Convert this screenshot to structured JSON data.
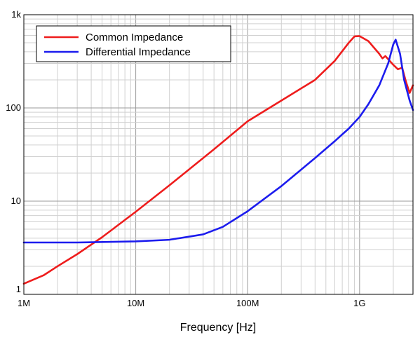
{
  "chart_data": {
    "type": "line",
    "title": "",
    "xlabel": "Frequency [Hz]",
    "ylabel": "",
    "x_scale": "log",
    "y_scale": "log",
    "xlim": [
      1000000,
      3000000000
    ],
    "ylim": [
      1,
      1000
    ],
    "x_ticks": [
      {
        "value": 1000000,
        "label": "1M"
      },
      {
        "value": 10000000,
        "label": "10M"
      },
      {
        "value": 100000000,
        "label": "100M"
      },
      {
        "value": 1000000000,
        "label": "1G"
      }
    ],
    "y_ticks": [
      {
        "value": 1,
        "label": "1"
      },
      {
        "value": 10,
        "label": "10"
      },
      {
        "value": 100,
        "label": "100"
      },
      {
        "value": 1000,
        "label": "1k"
      }
    ],
    "grid": true,
    "legend_position": "top-left",
    "series": [
      {
        "name": "Common Impedance",
        "color": "#ee1c1c",
        "points": [
          [
            1000000,
            1.3
          ],
          [
            1500000,
            1.6
          ],
          [
            2000000,
            2.0
          ],
          [
            3000000,
            2.7
          ],
          [
            5000000,
            4.1
          ],
          [
            10000000,
            7.7
          ],
          [
            20000000,
            14.8
          ],
          [
            50000000,
            36
          ],
          [
            100000000,
            72
          ],
          [
            200000000,
            120
          ],
          [
            400000000,
            200
          ],
          [
            600000000,
            320
          ],
          [
            800000000,
            500
          ],
          [
            900000000,
            585
          ],
          [
            1000000000,
            590
          ],
          [
            1200000000,
            520
          ],
          [
            1500000000,
            380
          ],
          [
            1600000000,
            340
          ],
          [
            1700000000,
            360
          ],
          [
            2000000000,
            290
          ],
          [
            2200000000,
            260
          ],
          [
            2400000000,
            270
          ],
          [
            2600000000,
            190
          ],
          [
            2800000000,
            145
          ],
          [
            3000000000,
            175
          ]
        ]
      },
      {
        "name": "Differential Impedance",
        "color": "#1c1cee",
        "points": [
          [
            1000000,
            3.6
          ],
          [
            3000000,
            3.6
          ],
          [
            10000000,
            3.7
          ],
          [
            20000000,
            3.85
          ],
          [
            40000000,
            4.4
          ],
          [
            60000000,
            5.3
          ],
          [
            100000000,
            7.8
          ],
          [
            200000000,
            14.5
          ],
          [
            400000000,
            29
          ],
          [
            600000000,
            44
          ],
          [
            700000000,
            52
          ],
          [
            800000000,
            60
          ],
          [
            1000000000,
            80
          ],
          [
            1200000000,
            110
          ],
          [
            1500000000,
            175
          ],
          [
            1800000000,
            300
          ],
          [
            2000000000,
            480
          ],
          [
            2100000000,
            540
          ],
          [
            2300000000,
            380
          ],
          [
            2500000000,
            200
          ],
          [
            2800000000,
            120
          ],
          [
            3000000000,
            95
          ]
        ]
      }
    ]
  }
}
